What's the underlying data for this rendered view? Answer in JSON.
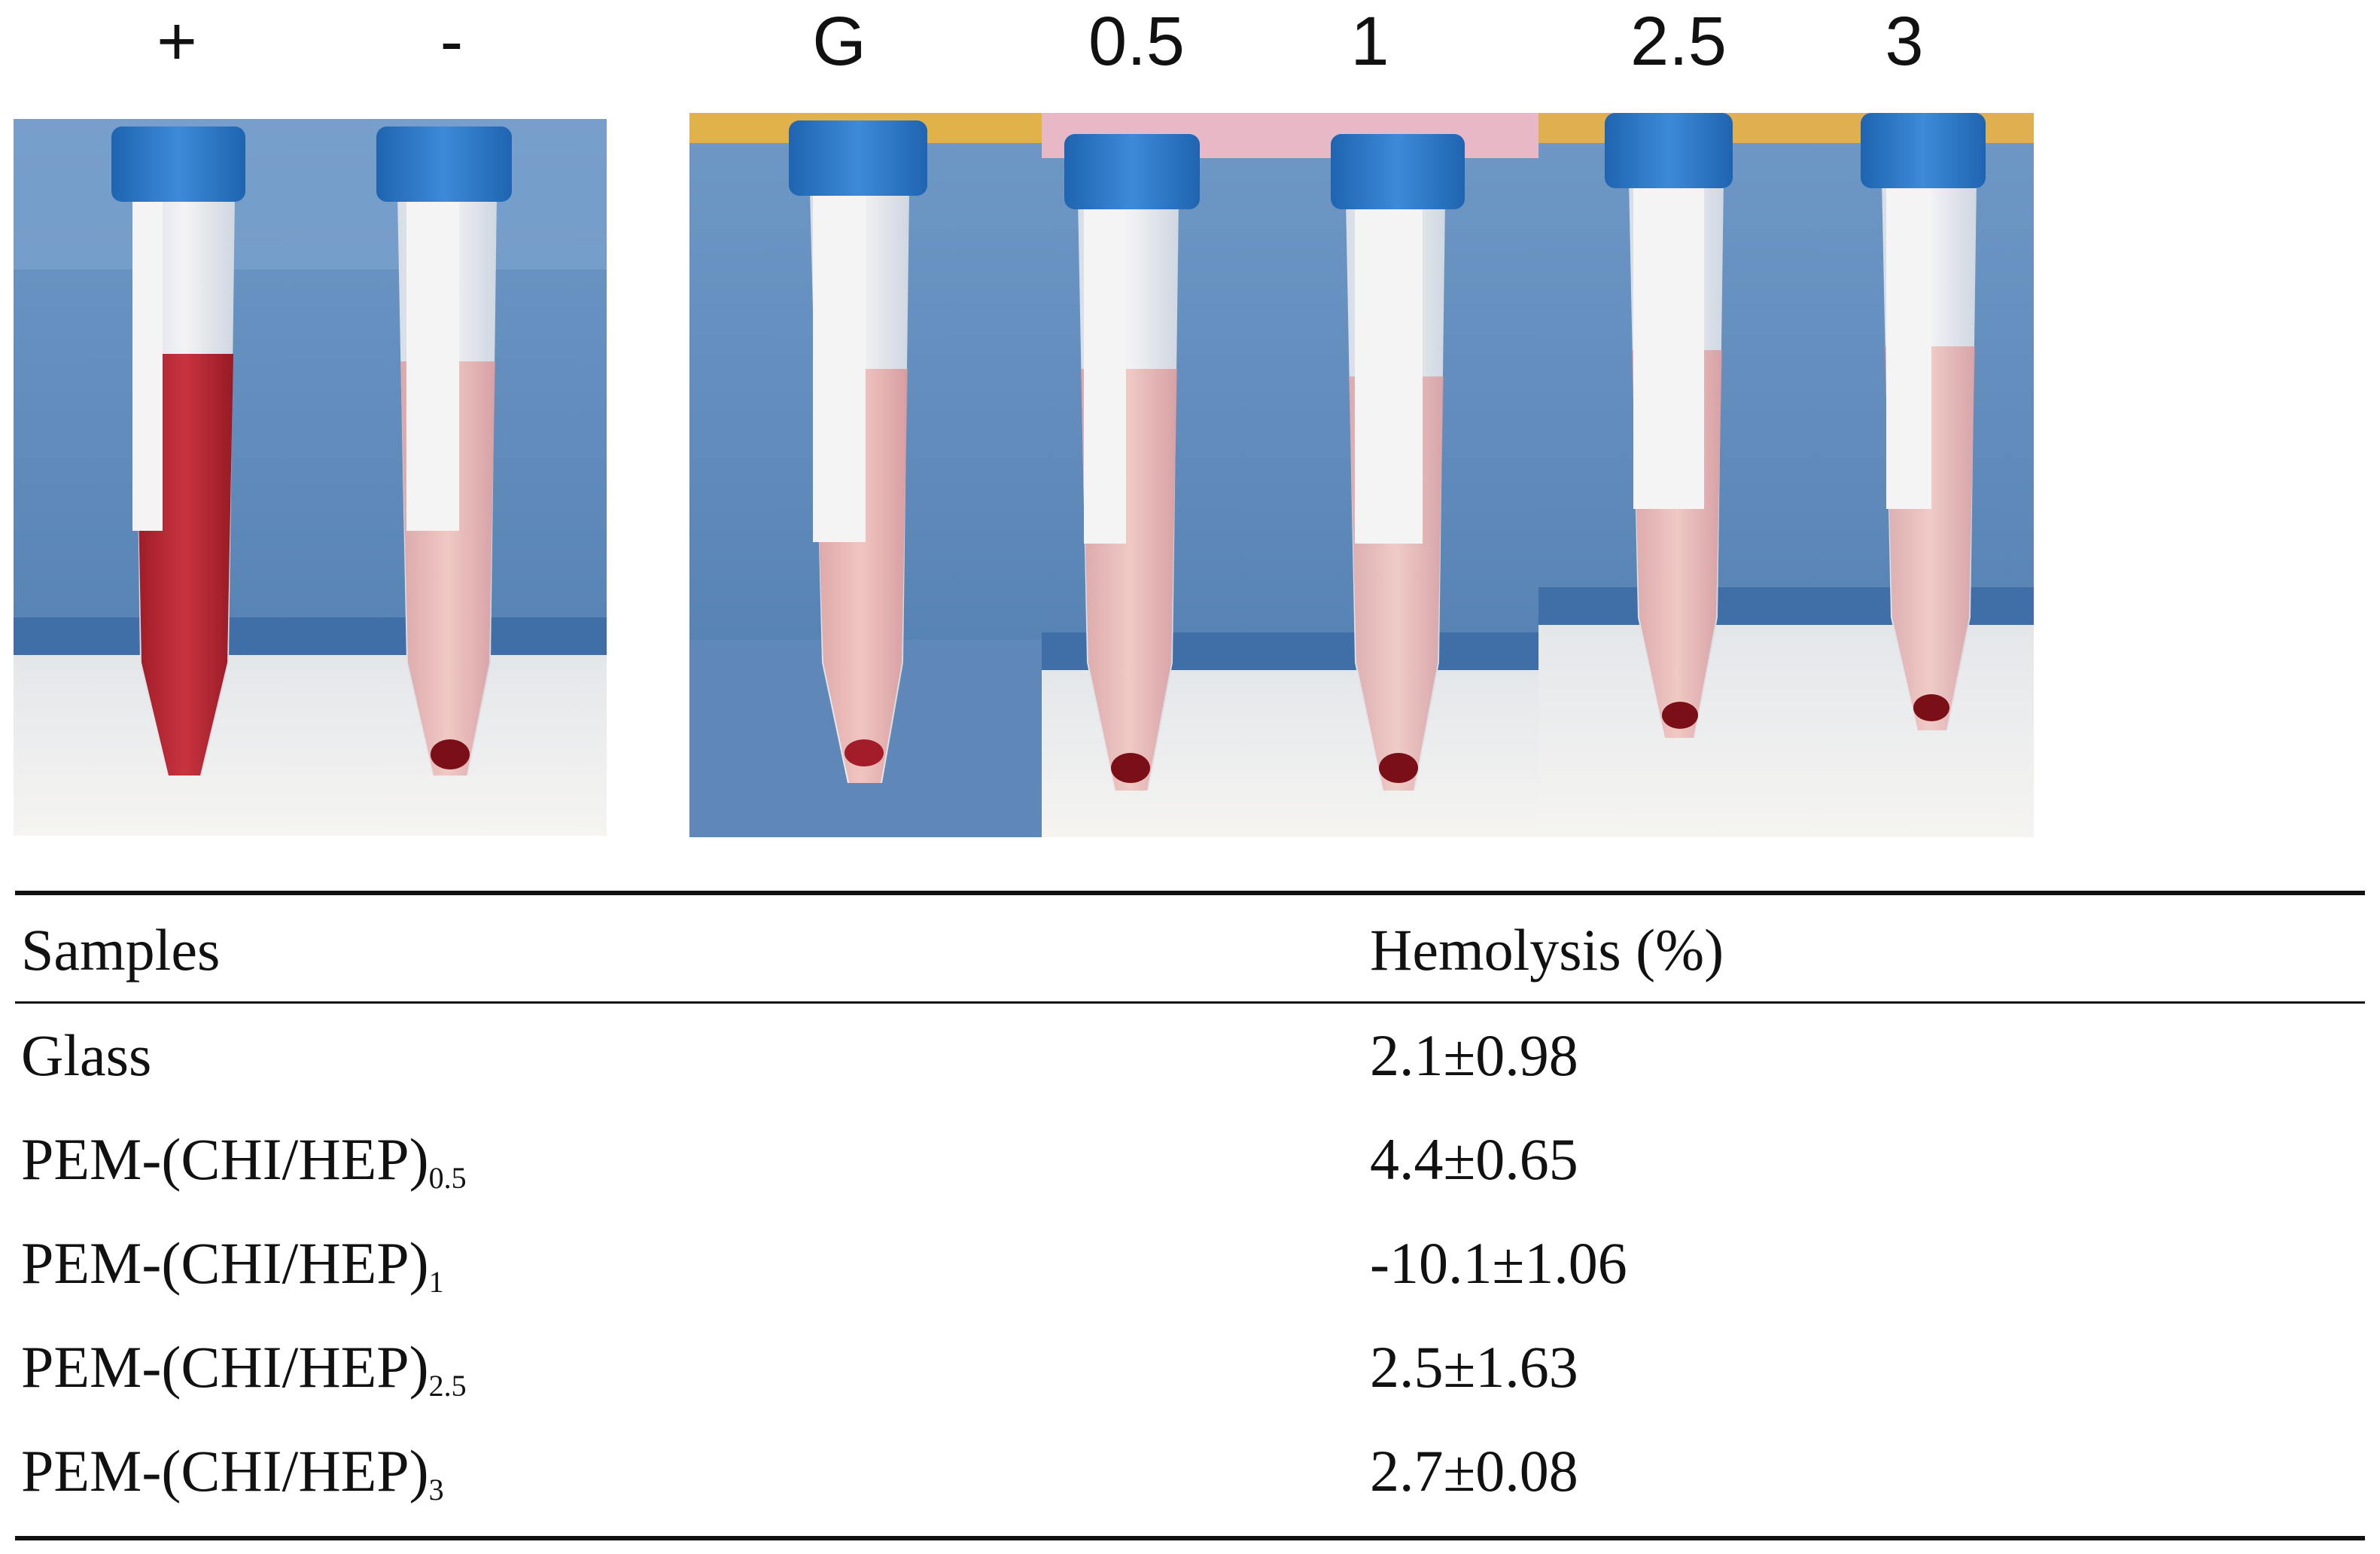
{
  "photo_labels": {
    "positive": "+",
    "negative": "-",
    "glass": "G",
    "l05": "0.5",
    "l1": "1",
    "l25": "2.5",
    "l3": "3"
  },
  "colors": {
    "rack_blue": "#5b86b8",
    "cap_blue": "#2f79c6",
    "tube_clear": "#e9e4e4",
    "positive_red": "#b8242e",
    "pink_supernatant": "#e9a7a3",
    "pellet": "#7a0f18",
    "counter_white": "#f2f1ee"
  },
  "table": {
    "header_samples": "Samples",
    "header_hemolysis": "Hemolysis (%)",
    "rows": [
      {
        "name": "Glass",
        "subscript": "",
        "value": "2.1±0.98"
      },
      {
        "name": "PEM-(CHI/HEP)",
        "subscript": "0.5",
        "value": "4.4±0.65"
      },
      {
        "name": "PEM-(CHI/HEP)",
        "subscript": "1",
        "value": "-10.1±1.06"
      },
      {
        "name": "PEM-(CHI/HEP)",
        "subscript": "2.5",
        "value": "2.5±1.63"
      },
      {
        "name": "PEM-(CHI/HEP)",
        "subscript": "3",
        "value": "2.7±0.08"
      }
    ]
  }
}
